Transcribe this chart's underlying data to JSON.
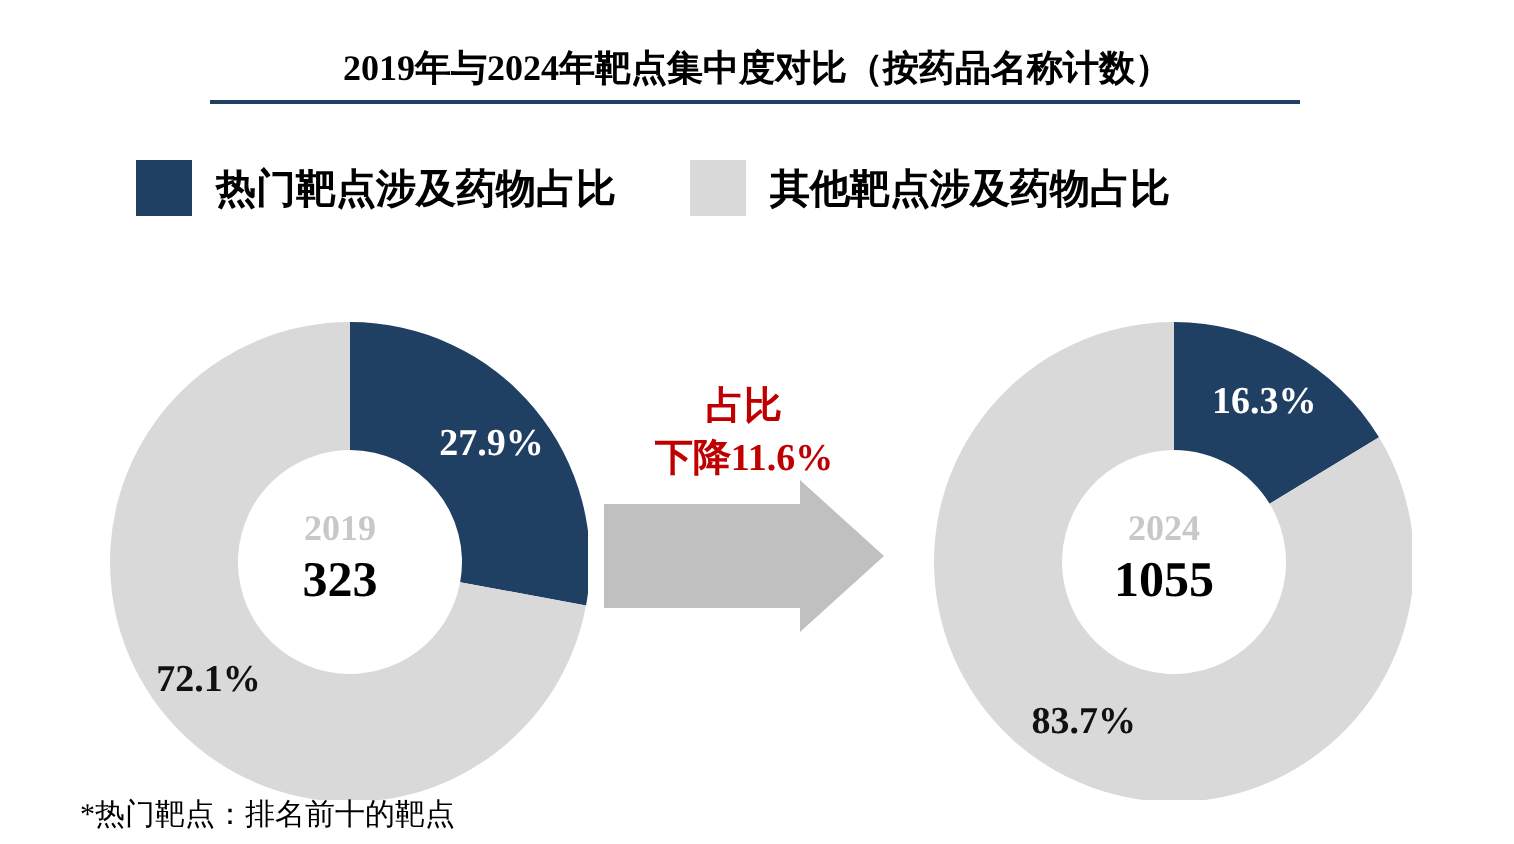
{
  "chart_data": [
    {
      "type": "donut",
      "title": "2019年与2024年靶点集中度对比（按药品名称计数）",
      "categories": [
        "热门靶点涉及药物占比",
        "其他靶点涉及药物占比"
      ],
      "values": [
        27.9,
        72.1
      ],
      "value_labels": [
        "27.9%",
        "72.1%"
      ],
      "colors": [
        "#1f3f63",
        "#d9d9d9"
      ],
      "legend": "top",
      "annotations": [
        "2019",
        "323",
        "占比",
        "下降11.6%",
        "*热门靶点：排名前十的靶点"
      ]
    },
    {
      "type": "donut",
      "categories": [
        null,
        null
      ],
      "values": [
        16.3,
        83.7
      ],
      "value_labels": [
        "16.3%",
        "83.7%"
      ],
      "colors": [
        "#1f3f63",
        "#d9d9d9"
      ],
      "annotations": [
        "2024",
        "1055"
      ]
    }
  ]
}
